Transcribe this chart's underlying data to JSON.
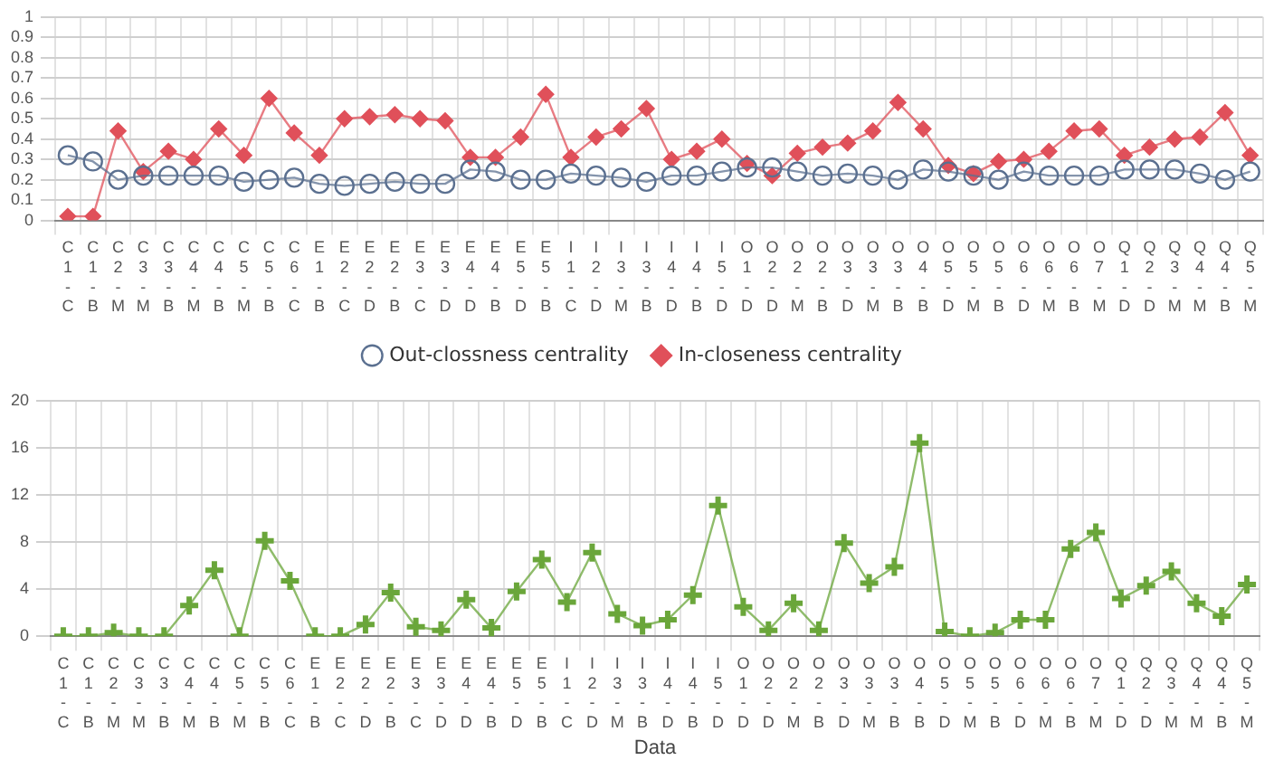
{
  "chart_data": [
    {
      "type": "line",
      "categories": [
        "C1-C",
        "C1-B",
        "C2-M",
        "C3-M",
        "C3-B",
        "C4-M",
        "C4-B",
        "C5-M",
        "C5-B",
        "C6-C",
        "E1-B",
        "E2-C",
        "E2-D",
        "E2-B",
        "E3-C",
        "E3-D",
        "E4-D",
        "E4-B",
        "E5-D",
        "E5-B",
        "I1-C",
        "I2-D",
        "I3-M",
        "I3-B",
        "I4-D",
        "I4-B",
        "I5-D",
        "O1-D",
        "O2-D",
        "O2-M",
        "O2-B",
        "O3-D",
        "O3-M",
        "O3-B",
        "O4-B",
        "O5-D",
        "O5-M",
        "O5-B",
        "O6-D",
        "O6-M",
        "O6-B",
        "O7-M",
        "Q1-D",
        "Q2-D",
        "Q3-M",
        "Q4-M",
        "Q4-B",
        "Q5-M"
      ],
      "series": [
        {
          "name": "Out-clossness centrality",
          "color": "#5b7090",
          "marker": "circle",
          "values": [
            0.32,
            0.29,
            0.2,
            0.22,
            0.22,
            0.22,
            0.22,
            0.19,
            0.2,
            0.21,
            0.18,
            0.17,
            0.18,
            0.19,
            0.18,
            0.18,
            0.25,
            0.24,
            0.2,
            0.2,
            0.23,
            0.22,
            0.21,
            0.19,
            0.22,
            0.22,
            0.24,
            0.26,
            0.26,
            0.24,
            0.22,
            0.23,
            0.22,
            0.2,
            0.25,
            0.24,
            0.22,
            0.2,
            0.24,
            0.22,
            0.22,
            0.22,
            0.25,
            0.25,
            0.25,
            0.23,
            0.2,
            0.24
          ]
        },
        {
          "name": "In-closeness centrality",
          "color": "#e0505a",
          "marker": "diamond",
          "values": [
            0.02,
            0.02,
            0.44,
            0.24,
            0.34,
            0.3,
            0.45,
            0.32,
            0.6,
            0.43,
            0.32,
            0.5,
            0.51,
            0.52,
            0.5,
            0.49,
            0.31,
            0.31,
            0.41,
            0.62,
            0.31,
            0.41,
            0.45,
            0.55,
            0.3,
            0.34,
            0.4,
            0.28,
            0.22,
            0.33,
            0.36,
            0.38,
            0.44,
            0.58,
            0.45,
            0.27,
            0.23,
            0.29,
            0.3,
            0.34,
            0.44,
            0.45,
            0.32,
            0.36,
            0.4,
            0.41,
            0.53,
            0.32
          ]
        }
      ],
      "ylim": [
        0,
        1
      ],
      "yticks": [
        0,
        0.1,
        0.2,
        0.3,
        0.4,
        0.5,
        0.6,
        0.7,
        0.8,
        0.9,
        1
      ],
      "grid": true,
      "legend": "bottom"
    },
    {
      "type": "line",
      "xlabel": "Data",
      "categories": [
        "C1-C",
        "C1-B",
        "C2-M",
        "C3-M",
        "C3-B",
        "C4-M",
        "C4-B",
        "C5-M",
        "C5-B",
        "C6-C",
        "E1-B",
        "E2-C",
        "E2-D",
        "E2-B",
        "E3-C",
        "E3-D",
        "E4-D",
        "E4-B",
        "E5-D",
        "E5-B",
        "I1-C",
        "I2-D",
        "I3-M",
        "I3-B",
        "I4-D",
        "I4-B",
        "I5-D",
        "O1-D",
        "O2-D",
        "O2-M",
        "O2-B",
        "O3-D",
        "O3-M",
        "O3-B",
        "O4-B",
        "O5-D",
        "O5-M",
        "O5-B",
        "O6-D",
        "O6-M",
        "O6-B",
        "O7-M",
        "Q1-D",
        "Q2-D",
        "Q3-M",
        "Q4-M",
        "Q4-B",
        "Q5-M"
      ],
      "series": [
        {
          "color": "#6aa63a",
          "marker": "cross",
          "values": [
            0,
            0,
            0.3,
            0,
            0,
            2.6,
            5.6,
            0,
            8.1,
            4.7,
            0,
            0,
            1.0,
            3.7,
            0.8,
            0.5,
            3.1,
            0.7,
            3.8,
            6.5,
            2.9,
            7.1,
            1.9,
            0.9,
            1.4,
            3.5,
            11.1,
            2.5,
            0.5,
            2.8,
            0.5,
            7.9,
            4.5,
            5.9,
            16.4,
            0.4,
            0,
            0.3,
            1.4,
            1.4,
            7.4,
            8.8,
            3.2,
            4.3,
            5.5,
            2.8,
            1.7,
            4.4
          ]
        }
      ],
      "ylim": [
        0,
        20
      ],
      "yticks": [
        0,
        4,
        8,
        12,
        16,
        20
      ],
      "grid": true,
      "legend": false
    }
  ]
}
